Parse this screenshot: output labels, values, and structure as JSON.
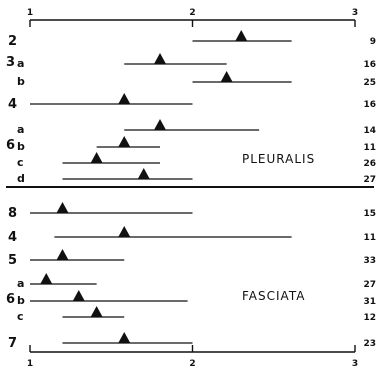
{
  "chart_data": {
    "type": "range",
    "xlim": [
      1,
      3
    ],
    "ticks": [
      "1",
      "2",
      "3"
    ],
    "groups": [
      {
        "name": "PLEURALIS",
        "rows": [
          {
            "label": "2",
            "sub": "",
            "n": "9",
            "range": [
              2.0,
              2.61
            ],
            "mean": 2.3
          },
          {
            "label": "3",
            "sub": "a",
            "n": "16",
            "range": [
              1.58,
              2.21
            ],
            "mean": 1.8
          },
          {
            "label": "",
            "sub": "b",
            "n": "25",
            "range": [
              2.0,
              2.61
            ],
            "mean": 2.21
          },
          {
            "label": "4",
            "sub": "",
            "n": "16",
            "range": [
              1.0,
              2.0
            ],
            "mean": 1.58
          },
          {
            "label": "",
            "sub": "a",
            "n": "14",
            "range": [
              1.58,
              2.41
            ],
            "mean": 1.8
          },
          {
            "label": "6",
            "sub": "b",
            "n": "11",
            "range": [
              1.41,
              1.8
            ],
            "mean": 1.58
          },
          {
            "label": "",
            "sub": "c",
            "n": "26",
            "range": [
              1.2,
              1.8
            ],
            "mean": 1.41
          },
          {
            "label": "",
            "sub": "d",
            "n": "27",
            "range": [
              1.2,
              2.0
            ],
            "mean": 1.7
          }
        ]
      },
      {
        "name": "FASCIATA",
        "rows": [
          {
            "label": "8",
            "sub": "",
            "n": "15",
            "range": [
              1.0,
              2.0
            ],
            "mean": 1.2
          },
          {
            "label": "4",
            "sub": "",
            "n": "11",
            "range": [
              1.15,
              2.61
            ],
            "mean": 1.58
          },
          {
            "label": "5",
            "sub": "",
            "n": "33",
            "range": [
              1.0,
              1.58
            ],
            "mean": 1.2
          },
          {
            "label": "",
            "sub": "a",
            "n": "27",
            "range": [
              1.0,
              1.41
            ],
            "mean": 1.1
          },
          {
            "label": "6",
            "sub": "b",
            "n": "31",
            "range": [
              1.0,
              1.97
            ],
            "mean": 1.3
          },
          {
            "label": "",
            "sub": "c",
            "n": "12",
            "range": [
              1.2,
              1.58
            ],
            "mean": 1.41
          },
          {
            "label": "7",
            "sub": "",
            "n": "23",
            "range": [
              1.2,
              2.0
            ],
            "mean": 1.58
          }
        ]
      }
    ]
  }
}
